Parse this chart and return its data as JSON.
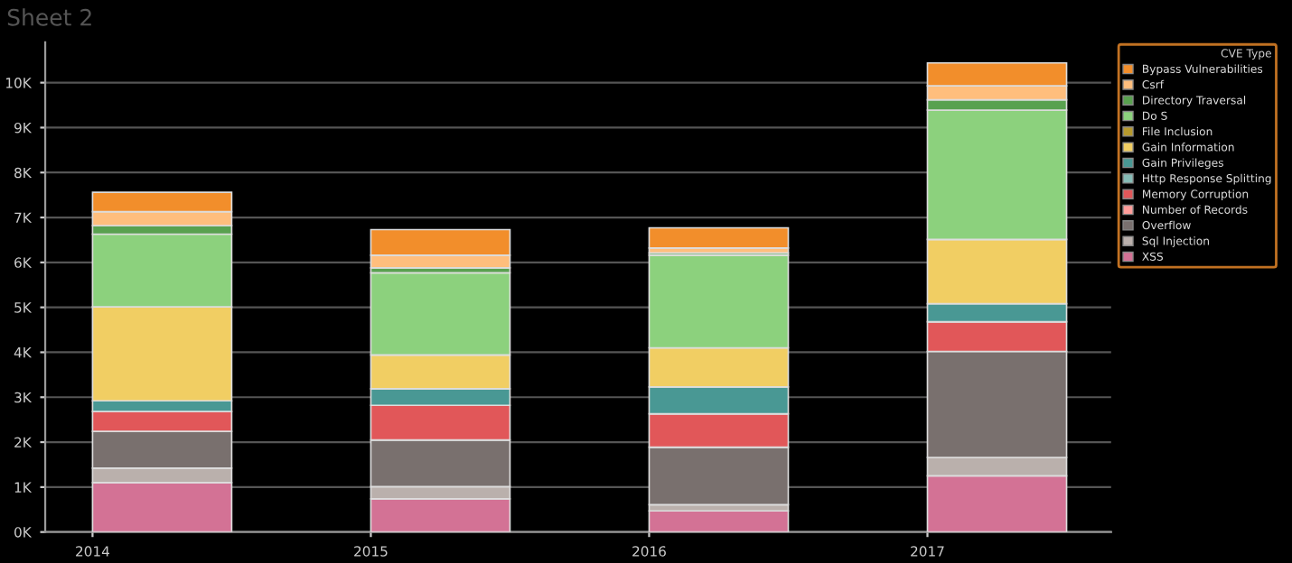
{
  "chart_data": {
    "type": "bar",
    "title": "Sheet 2",
    "legend_title": "CVE Type",
    "categories": [
      "2014",
      "2015",
      "2016",
      "2017"
    ],
    "stacked": true,
    "series": [
      {
        "name": "XSS",
        "color": "#d37295",
        "values": [
          1100,
          740,
          470,
          1250
        ]
      },
      {
        "name": "Sql Injection",
        "color": "#bab0ac",
        "values": [
          320,
          270,
          140,
          410
        ]
      },
      {
        "name": "Overflow",
        "color": "#79706e",
        "values": [
          820,
          1040,
          1280,
          2360
        ]
      },
      {
        "name": "Number of Records",
        "color": "#ff9d9a",
        "values": [
          0,
          0,
          0,
          0
        ]
      },
      {
        "name": "Memory Corruption",
        "color": "#e15759",
        "values": [
          440,
          770,
          740,
          660
        ]
      },
      {
        "name": "Http Response Splitting",
        "color": "#86bcb6",
        "values": [
          0,
          0,
          0,
          0
        ]
      },
      {
        "name": "Gain Privileges",
        "color": "#499894",
        "values": [
          240,
          370,
          600,
          400
        ]
      },
      {
        "name": "Gain Information",
        "color": "#f1ce63",
        "values": [
          2090,
          750,
          870,
          1430
        ]
      },
      {
        "name": "File Inclusion",
        "color": "#b6992d",
        "values": [
          0,
          0,
          0,
          0
        ]
      },
      {
        "name": "Do S",
        "color": "#8cd17d",
        "values": [
          1620,
          1830,
          2060,
          2880
        ]
      },
      {
        "name": "Directory Traversal",
        "color": "#59a14f",
        "values": [
          190,
          110,
          50,
          230
        ]
      },
      {
        "name": "Csrf",
        "color": "#ffbe7d",
        "values": [
          310,
          280,
          110,
          310
        ]
      },
      {
        "name": "Bypass Vulnerabilities",
        "color": "#f28e2b",
        "values": [
          430,
          570,
          450,
          510
        ]
      }
    ],
    "ylim": [
      0,
      10900
    ],
    "yticks": [
      {
        "value": 0,
        "label": "0K"
      },
      {
        "value": 1000,
        "label": "1K"
      },
      {
        "value": 2000,
        "label": "2K"
      },
      {
        "value": 3000,
        "label": "3K"
      },
      {
        "value": 4000,
        "label": "4K"
      },
      {
        "value": 5000,
        "label": "5K"
      },
      {
        "value": 6000,
        "label": "6K"
      },
      {
        "value": 7000,
        "label": "7K"
      },
      {
        "value": 8000,
        "label": "8K"
      },
      {
        "value": 9000,
        "label": "9K"
      },
      {
        "value": 10000,
        "label": "10K"
      }
    ],
    "grid": "y",
    "legend": "right"
  }
}
